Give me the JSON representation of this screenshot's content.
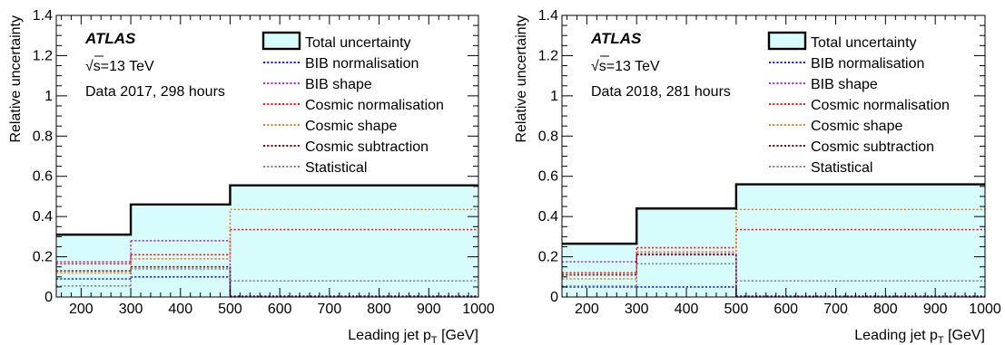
{
  "chart_data": [
    {
      "type": "step",
      "experiment": "ATLAS",
      "energy": "√s=13 TeV",
      "period": "Data 2017, 298 hours",
      "xlabel": "Leading jet p",
      "xlabel_sub": "T",
      "xlabel_unit": " [GeV]",
      "ylabel": "Relative uncertainty",
      "xlim": [
        150,
        1000
      ],
      "ylim": [
        0,
        1.4
      ],
      "x_ticks": [
        "200",
        "300",
        "400",
        "500",
        "600",
        "700",
        "800",
        "900",
        "1000"
      ],
      "y_ticks": [
        "0",
        "0.2",
        "0.4",
        "0.6",
        "0.8",
        "1",
        "1.2",
        "1.4"
      ],
      "bins": [
        [
          150,
          300
        ],
        [
          300,
          500
        ],
        [
          500,
          1000
        ]
      ],
      "series": [
        {
          "name": "Total uncertainty",
          "color": "#000000",
          "fill": "#d6fcfc",
          "values": [
            0.31,
            0.46,
            0.555
          ]
        },
        {
          "name": "BIB normalisation",
          "color": "#1f1fd0",
          "values": [
            0.09,
            0.1,
            0.005
          ]
        },
        {
          "name": "BIB shape",
          "color": "#b030e0",
          "values": [
            0.175,
            0.28,
            0.003
          ]
        },
        {
          "name": "Cosmic normalisation",
          "color": "#ee2020",
          "values": [
            0.165,
            0.21,
            0.335
          ]
        },
        {
          "name": "Cosmic shape",
          "color": "#f08020",
          "values": [
            0.12,
            0.19,
            0.435
          ]
        },
        {
          "name": "Cosmic subtraction",
          "color": "#7a1010",
          "values": [
            0.13,
            0.15,
            0.001
          ]
        },
        {
          "name": "Statistical",
          "color": "#888888",
          "values": [
            0.055,
            0.14,
            0.08
          ]
        }
      ]
    },
    {
      "type": "step",
      "experiment": "ATLAS",
      "energy": "√s=13 TeV",
      "period": "Data 2018, 281 hours",
      "xlabel": "Leading jet p",
      "xlabel_sub": "T",
      "xlabel_unit": " [GeV]",
      "ylabel": "Relative uncertainty",
      "xlim": [
        150,
        1000
      ],
      "ylim": [
        0,
        1.4
      ],
      "x_ticks": [
        "200",
        "300",
        "400",
        "500",
        "600",
        "700",
        "800",
        "900",
        "1000"
      ],
      "y_ticks": [
        "0",
        "0.2",
        "0.4",
        "0.6",
        "0.8",
        "1",
        "1.2",
        "1.4"
      ],
      "bins": [
        [
          150,
          300
        ],
        [
          300,
          500
        ],
        [
          500,
          1000
        ]
      ],
      "series": [
        {
          "name": "Total uncertainty",
          "color": "#000000",
          "fill": "#d6fcfc",
          "values": [
            0.265,
            0.44,
            0.56
          ]
        },
        {
          "name": "BIB normalisation",
          "color": "#1f1fd0",
          "values": [
            0.05,
            0.05,
            0.005
          ]
        },
        {
          "name": "BIB shape",
          "color": "#b030e0",
          "values": [
            0.175,
            0.215,
            0.003
          ]
        },
        {
          "name": "Cosmic normalisation",
          "color": "#ee2020",
          "values": [
            0.12,
            0.245,
            0.335
          ]
        },
        {
          "name": "Cosmic shape",
          "color": "#f08020",
          "values": [
            0.09,
            0.225,
            0.435
          ]
        },
        {
          "name": "Cosmic subtraction",
          "color": "#7a1010",
          "values": [
            0.11,
            0.21,
            0.001
          ]
        },
        {
          "name": "Statistical",
          "color": "#888888",
          "values": [
            0.055,
            0.165,
            0.08
          ]
        }
      ]
    }
  ]
}
